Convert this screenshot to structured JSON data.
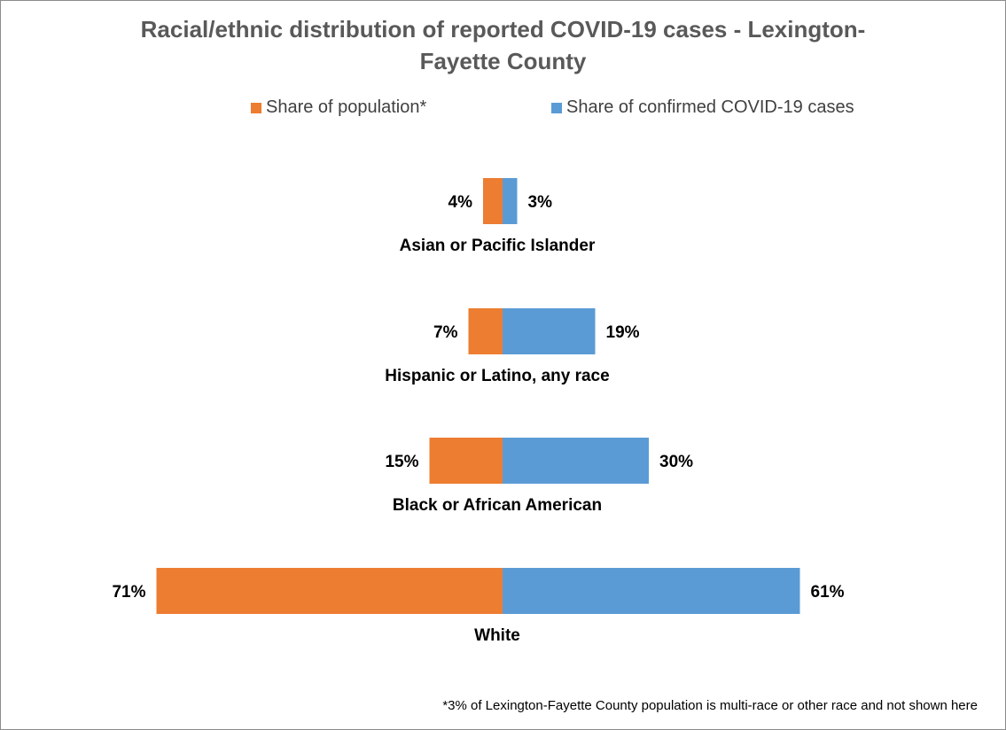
{
  "chart_data": {
    "type": "bar",
    "subtype": "diverging-horizontal",
    "title": "Racial/ethnic distribution of reported COVID-19 cases -  Lexington-Fayette County",
    "title_lines": [
      "Racial/ethnic distribution of reported COVID-19 cases -  Lexington-",
      "Fayette County"
    ],
    "categories": [
      "Asian or Pacific Islander",
      "Hispanic or Latino, any race",
      "Black or African American",
      "White"
    ],
    "series": [
      {
        "name": "Share of population*",
        "color": "#ED7D31",
        "direction": "left",
        "values": [
          4,
          7,
          15,
          71
        ],
        "labels": [
          "4%",
          "7%",
          "15%",
          "71%"
        ]
      },
      {
        "name": "Share of confirmed COVID-19 cases",
        "color": "#5B9BD5",
        "direction": "right",
        "values": [
          3,
          19,
          30,
          61
        ],
        "labels": [
          "3%",
          "19%",
          "30%",
          "61%"
        ]
      }
    ],
    "unit": "%",
    "legend_position": "top",
    "grid": false,
    "footnote": "*3% of Lexington-Fayette County population is multi-race or other race and not shown here"
  }
}
